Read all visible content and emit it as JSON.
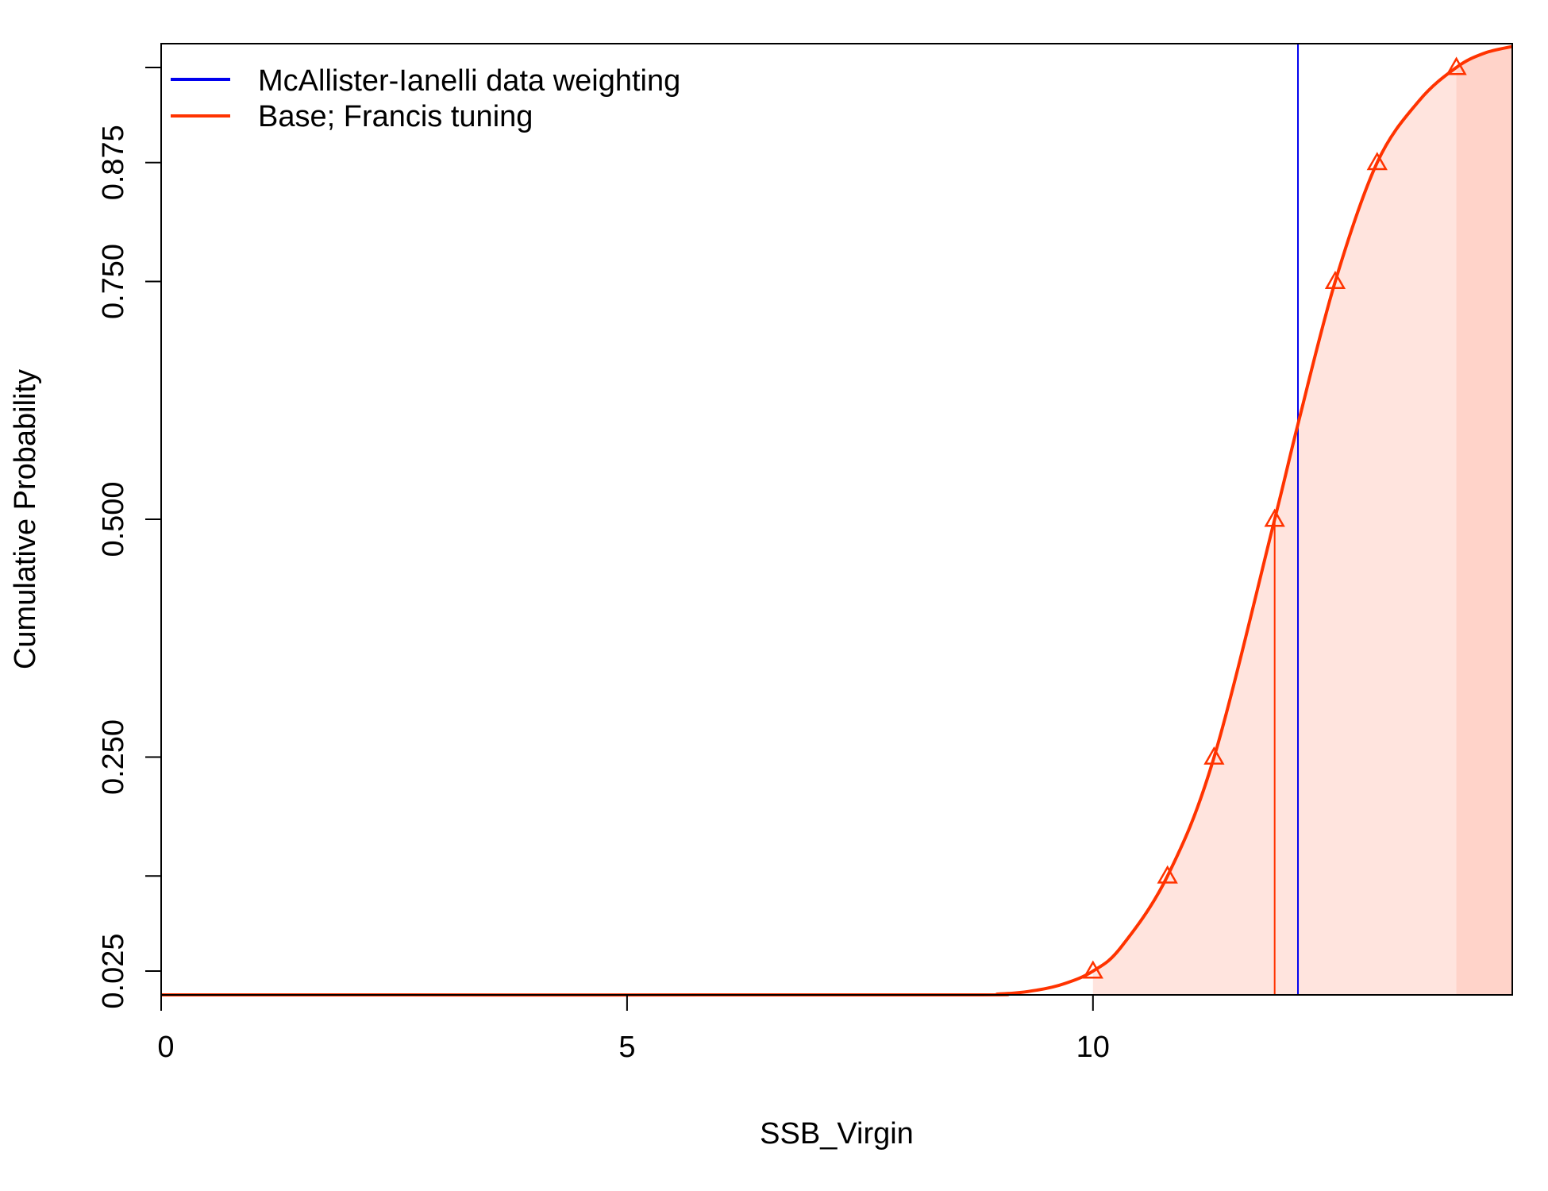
{
  "chart_data": {
    "type": "line",
    "xlabel": "SSB_Virgin",
    "ylabel": "Cumulative Probability",
    "xlim": [
      0,
      14.5
    ],
    "ylim": [
      0,
      1
    ],
    "x_ticks": [
      0,
      5,
      10
    ],
    "y_ticks": [
      0.025,
      0.25,
      0.5,
      0.75,
      0.875
    ],
    "y_tick_labels": [
      "0.025",
      "0.250",
      "0.500",
      "0.750",
      "0.875"
    ],
    "minor_y_ticks": [
      0.125,
      0.975
    ],
    "grid": false,
    "legend_position": "top-left",
    "shaded_region_start_x": 13.9,
    "colors": {
      "blue": "#0000ee",
      "red": "#ff3300",
      "shade_light": "#ffe4de",
      "shade_dark": "#ffd3c9"
    },
    "series": [
      {
        "name": "McAllister-Ianelli data weighting",
        "kind": "vertical_line",
        "x": 12.2
      },
      {
        "name": "Base; Francis tuning",
        "kind": "cdf",
        "x": [
          0,
          8.2,
          9.0,
          9.4,
          9.7,
          10.0,
          10.3,
          10.8,
          11.3,
          11.95,
          12.2,
          12.6,
          13.05,
          13.5,
          13.9,
          14.2,
          14.5
        ],
        "y": [
          0,
          0,
          0.001,
          0.005,
          0.012,
          0.025,
          0.05,
          0.125,
          0.25,
          0.5,
          0.6,
          0.75,
          0.875,
          0.94,
          0.975,
          0.99,
          0.997
        ],
        "triangle_markers": {
          "x": [
            10.0,
            10.8,
            11.3,
            11.95,
            12.6,
            13.05,
            13.9
          ],
          "y": [
            0.025,
            0.125,
            0.25,
            0.5,
            0.75,
            0.875,
            0.975
          ]
        },
        "median_x": 11.95
      }
    ]
  }
}
